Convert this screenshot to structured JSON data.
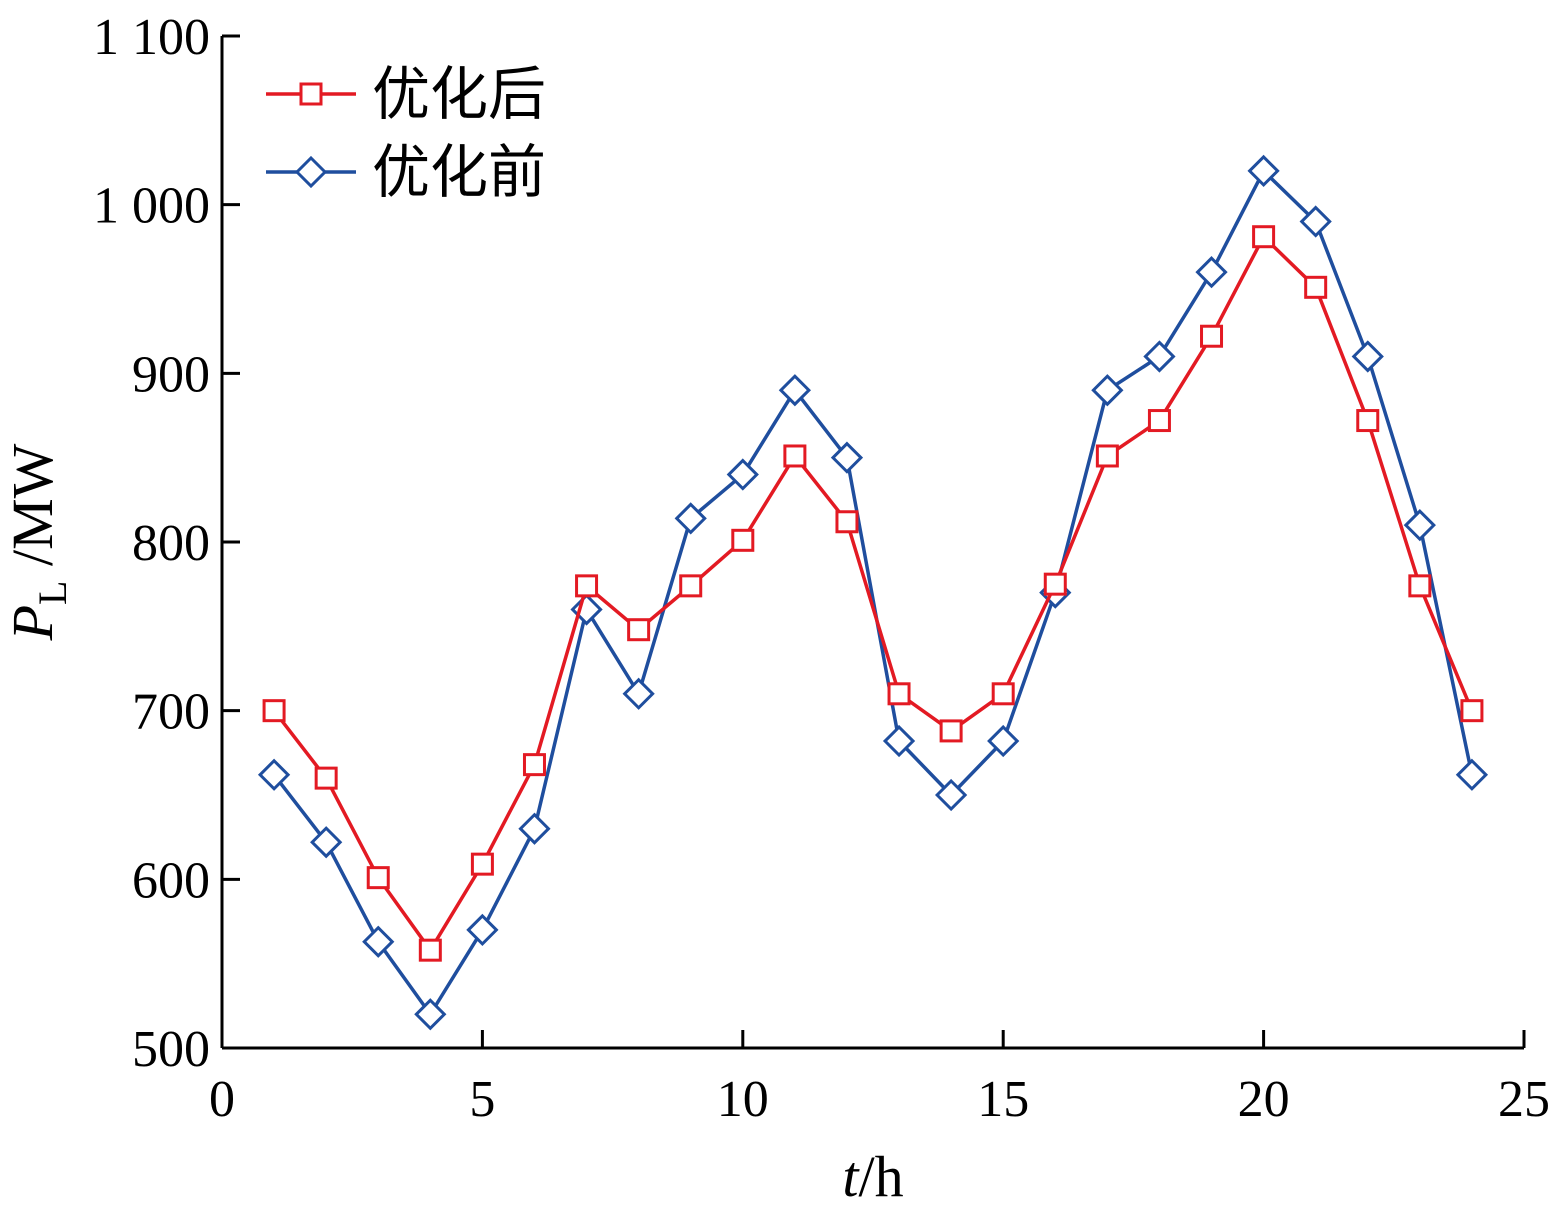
{
  "chart_data": {
    "type": "line",
    "xlabel_var": "t",
    "xlabel_unit": "/h",
    "ylabel_var": "P",
    "ylabel_sub": "L",
    "ylabel_unit": " /MW",
    "xlim": [
      0,
      25
    ],
    "ylim": [
      500,
      1100
    ],
    "xticks": [
      0,
      5,
      10,
      15,
      20,
      25
    ],
    "yticks": [
      500,
      600,
      700,
      800,
      900,
      1000,
      1100
    ],
    "xtick_labels": [
      "0",
      "5",
      "10",
      "15",
      "20",
      "25"
    ],
    "ytick_labels": [
      "500",
      "600",
      "700",
      "800",
      "900",
      "1 000",
      "1 100"
    ],
    "grid": false,
    "legend_position": "top-left",
    "x": [
      1,
      2,
      3,
      4,
      5,
      6,
      7,
      8,
      9,
      10,
      11,
      12,
      13,
      14,
      15,
      16,
      17,
      18,
      19,
      20,
      21,
      22,
      23,
      24
    ],
    "series": [
      {
        "name": "优化后",
        "color": "#e31a23",
        "marker": "square",
        "values": [
          700,
          660,
          601,
          558,
          609,
          668,
          774,
          748,
          774,
          801,
          851,
          812,
          710,
          688,
          710,
          775,
          851,
          872,
          922,
          981,
          951,
          872,
          774,
          700
        ]
      },
      {
        "name": "优化前",
        "color": "#1f4e9e",
        "marker": "diamond",
        "values": [
          662,
          622,
          563,
          520,
          570,
          630,
          760,
          710,
          814,
          840,
          890,
          850,
          682,
          650,
          682,
          770,
          890,
          910,
          960,
          1020,
          990,
          910,
          810,
          662
        ]
      }
    ]
  }
}
